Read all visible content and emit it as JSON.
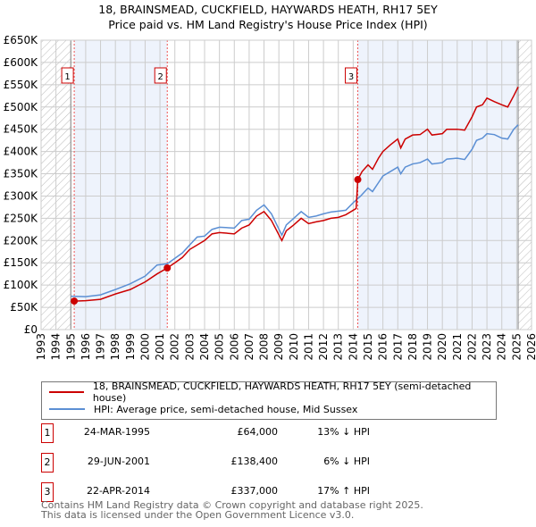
{
  "chart_data": {
    "type": "line",
    "title": "18, BRAINSMEAD, CUCKFIELD, HAYWARDS HEATH, RH17 5EY",
    "subtitle": "Price paid vs. HM Land Registry's House Price Index (HPI)",
    "xlim": [
      1993,
      2026
    ],
    "ylim": [
      0,
      650000
    ],
    "x_ticks": [
      "1993",
      "1994",
      "1995",
      "1996",
      "1997",
      "1998",
      "1999",
      "2000",
      "2001",
      "2002",
      "2003",
      "2004",
      "2005",
      "2006",
      "2007",
      "2008",
      "2009",
      "2010",
      "2011",
      "2012",
      "2013",
      "2014",
      "2015",
      "2016",
      "2017",
      "2018",
      "2019",
      "2020",
      "2021",
      "2022",
      "2023",
      "2024",
      "2025",
      "2026"
    ],
    "y_ticks": [
      "£0",
      "£50K",
      "£100K",
      "£150K",
      "£200K",
      "£250K",
      "£300K",
      "£350K",
      "£400K",
      "£450K",
      "£500K",
      "£550K",
      "£600K",
      "£650K"
    ],
    "grid": true,
    "series": [
      {
        "name": "18, BRAINSMEAD, CUCKFIELD, HAYWARDS HEATH, RH17 5EY (semi-detached house)",
        "color": "#cc0000",
        "x": [
          1995.23,
          1996,
          1997,
          1998,
          1999,
          2000,
          2000.8,
          2001.49,
          2002,
          2002.5,
          2003,
          2004,
          2004.5,
          2005,
          2006,
          2006.5,
          2007,
          2007.5,
          2008,
          2008.5,
          2009.2,
          2009.5,
          2010,
          2010.5,
          2011,
          2011.5,
          2012,
          2012.5,
          2013,
          2013.5,
          2014.2,
          2014.31,
          2014.6,
          2015,
          2015.3,
          2015.7,
          2016,
          2016.5,
          2017,
          2017.2,
          2017.5,
          2018,
          2018.5,
          2019,
          2019.3,
          2020,
          2020.3,
          2021,
          2021.5,
          2022,
          2022.3,
          2022.7,
          2023,
          2023.5,
          2024,
          2024.4,
          2024.8,
          2025.1
        ],
        "y": [
          64000,
          65000,
          68000,
          80000,
          90000,
          107000,
          125000,
          138400,
          150000,
          162000,
          180000,
          200000,
          215000,
          218000,
          215000,
          228000,
          235000,
          255000,
          265000,
          245000,
          200000,
          222000,
          235000,
          250000,
          238000,
          242000,
          245000,
          250000,
          252000,
          258000,
          272000,
          337000,
          355000,
          370000,
          360000,
          385000,
          400000,
          415000,
          428000,
          408000,
          428000,
          437000,
          438000,
          450000,
          437000,
          440000,
          450000,
          450000,
          448000,
          478000,
          500000,
          505000,
          520000,
          512000,
          505000,
          500000,
          525000,
          545000
        ]
      },
      {
        "name": "HPI: Average price, semi-detached house, Mid Sussex",
        "color": "#5b8fd4",
        "x": [
          1995,
          1996,
          1997,
          1998,
          1999,
          2000,
          2000.8,
          2001.5,
          2002,
          2002.5,
          2003,
          2003.5,
          2004,
          2004.5,
          2005,
          2006,
          2006.5,
          2007,
          2007.5,
          2008,
          2008.5,
          2009.2,
          2009.5,
          2010,
          2010.5,
          2011,
          2011.5,
          2012,
          2012.5,
          2013,
          2013.5,
          2014,
          2014.5,
          2015,
          2015.3,
          2015.7,
          2016,
          2016.5,
          2017,
          2017.2,
          2017.5,
          2018,
          2018.5,
          2019,
          2019.3,
          2020,
          2020.3,
          2021,
          2021.5,
          2022,
          2022.3,
          2022.7,
          2023,
          2023.5,
          2024,
          2024.4,
          2024.8,
          2025.1
        ],
        "y": [
          75000,
          74000,
          78000,
          90000,
          103000,
          120000,
          145000,
          148000,
          160000,
          172000,
          190000,
          208000,
          210000,
          225000,
          230000,
          228000,
          245000,
          248000,
          268000,
          280000,
          260000,
          212000,
          235000,
          250000,
          265000,
          252000,
          255000,
          260000,
          264000,
          266000,
          268000,
          285000,
          300000,
          318000,
          310000,
          330000,
          345000,
          355000,
          365000,
          350000,
          365000,
          372000,
          375000,
          383000,
          372000,
          375000,
          383000,
          385000,
          382000,
          405000,
          425000,
          430000,
          440000,
          438000,
          430000,
          428000,
          450000,
          460000
        ]
      }
    ],
    "sales": [
      {
        "label": "1",
        "x": 1995.23,
        "y": 64000
      },
      {
        "label": "2",
        "x": 2001.49,
        "y": 138400
      },
      {
        "label": "3",
        "x": 2014.31,
        "y": 337000
      }
    ],
    "legend_placement": "below"
  },
  "legend": {
    "red": "18, BRAINSMEAD, CUCKFIELD, HAYWARDS HEATH, RH17 5EY (semi-detached house)",
    "blue": "HPI: Average price, semi-detached house, Mid Sussex"
  },
  "transactions": [
    {
      "num": "1",
      "date": "24-MAR-1995",
      "price": "£64,000",
      "hpi": "13% ↓ HPI"
    },
    {
      "num": "2",
      "date": "29-JUN-2001",
      "price": "£138,400",
      "hpi": "6% ↓ HPI"
    },
    {
      "num": "3",
      "date": "22-APR-2014",
      "price": "£337,000",
      "hpi": "17% ↑ HPI"
    }
  ],
  "footer": {
    "line1": "Contains HM Land Registry data © Crown copyright and database right 2025.",
    "line2": "This data is licensed under the Open Government Licence v3.0."
  },
  "colors": {
    "red": "#cc0000",
    "blue": "#5b8fd4",
    "shade": "#eef3fc"
  }
}
